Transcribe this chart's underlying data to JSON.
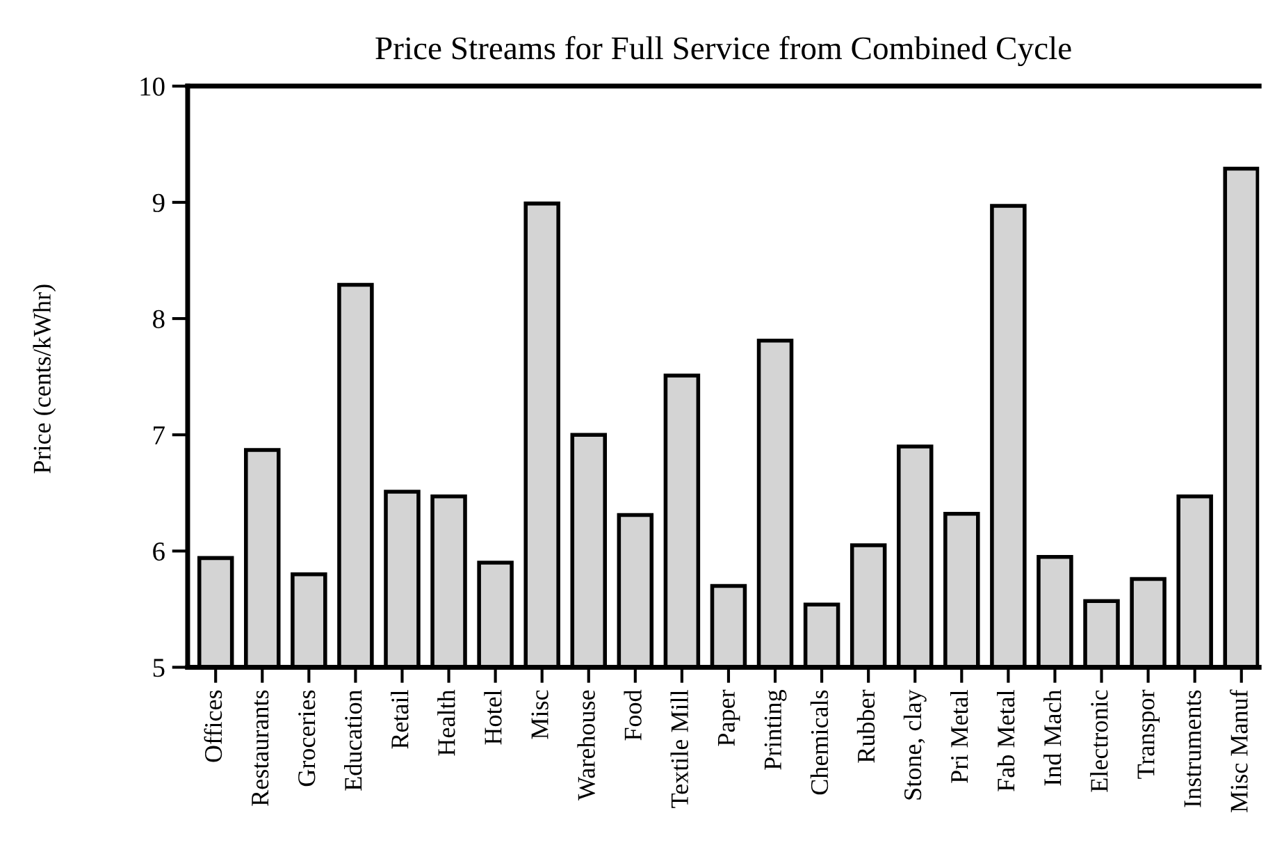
{
  "chart_data": {
    "type": "bar",
    "title": "Price Streams for Full Service from Combined Cycle",
    "ylabel": "Price (cents/kWhr)",
    "categories": [
      "Offices",
      "Restaurants",
      "Groceries",
      "Education",
      "Retail",
      "Health",
      "Hotel",
      "Misc",
      "Warehouse",
      "Food",
      "Textile Mill",
      "Paper",
      "Printing",
      "Chemicals",
      "Rubber",
      "Stone, clay",
      "Pri Metal",
      "Fab Metal",
      "Ind Mach",
      "Electronic",
      "Transpor",
      "Instruments",
      "Misc Manuf"
    ],
    "values": [
      5.94,
      6.87,
      5.8,
      8.29,
      6.51,
      6.47,
      5.9,
      8.99,
      7.0,
      6.31,
      7.51,
      5.7,
      7.81,
      5.54,
      6.05,
      6.9,
      6.32,
      8.97,
      5.95,
      5.57,
      5.76,
      6.47,
      9.29
    ],
    "color": "#d4d4d4",
    "ylim": [
      5,
      10
    ],
    "yticks": [
      5,
      6,
      7,
      8,
      9,
      10
    ],
    "grid": false,
    "legend": false
  }
}
